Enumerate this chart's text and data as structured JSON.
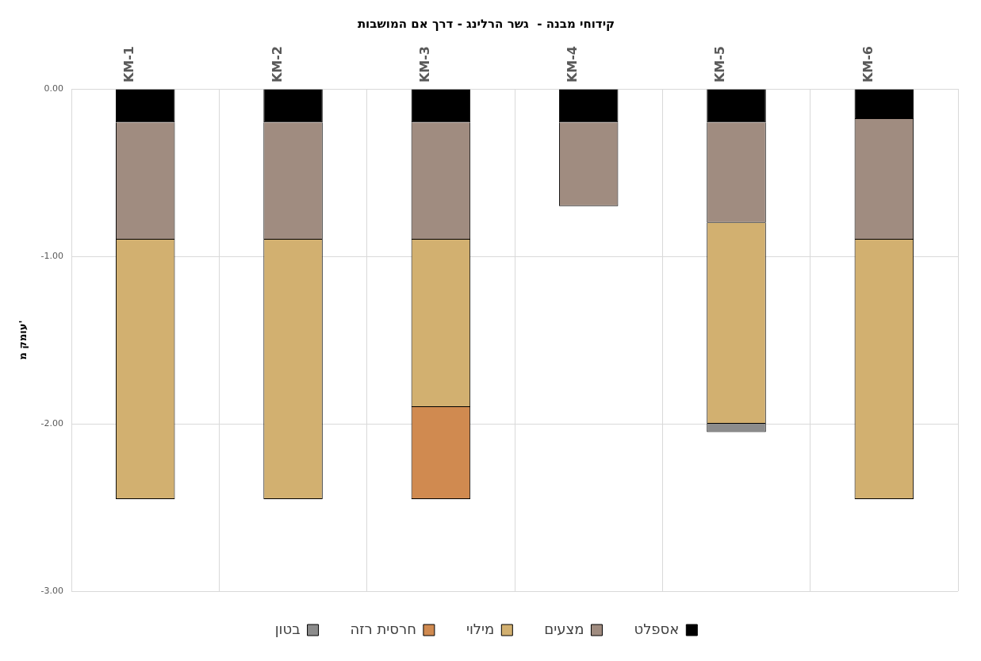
{
  "chart_data": {
    "type": "bar",
    "stacked": true,
    "title": "קידוחי מבנה -  גשר הרלינג - דרך אם המושבות",
    "ylabel": "עומק מ'",
    "categories": [
      "KM-1",
      "KM-2",
      "KM-3",
      "KM-4",
      "KM-5",
      "KM-6"
    ],
    "series": [
      {
        "name": "אספלט",
        "color": "#000000",
        "values": [
          -0.2,
          -0.2,
          -0.2,
          -0.2,
          -0.2,
          -0.18
        ]
      },
      {
        "name": "מצעים",
        "color": "#a08c80",
        "values": [
          -0.7,
          -0.7,
          -0.7,
          -0.5,
          -0.6,
          -0.72
        ]
      },
      {
        "name": "מילוי",
        "color": "#d2b070",
        "values": [
          -1.55,
          -1.55,
          -1.0,
          null,
          -1.2,
          -1.55
        ]
      },
      {
        "name": "חרסית רזה",
        "color": "#d08a50",
        "values": [
          null,
          null,
          -0.55,
          null,
          null,
          null
        ]
      },
      {
        "name": "בטון",
        "color": "#8c8c8c",
        "values": [
          null,
          null,
          null,
          null,
          -0.05,
          null
        ]
      }
    ],
    "ylim": [
      -3,
      0
    ],
    "yticks": [
      {
        "value": 0,
        "label": "0.00"
      },
      {
        "value": -1,
        "label": "-1.00"
      },
      {
        "value": -2,
        "label": "-2.00"
      },
      {
        "value": -3,
        "label": "-3.00"
      }
    ],
    "grid": true,
    "legend": "bottom"
  }
}
